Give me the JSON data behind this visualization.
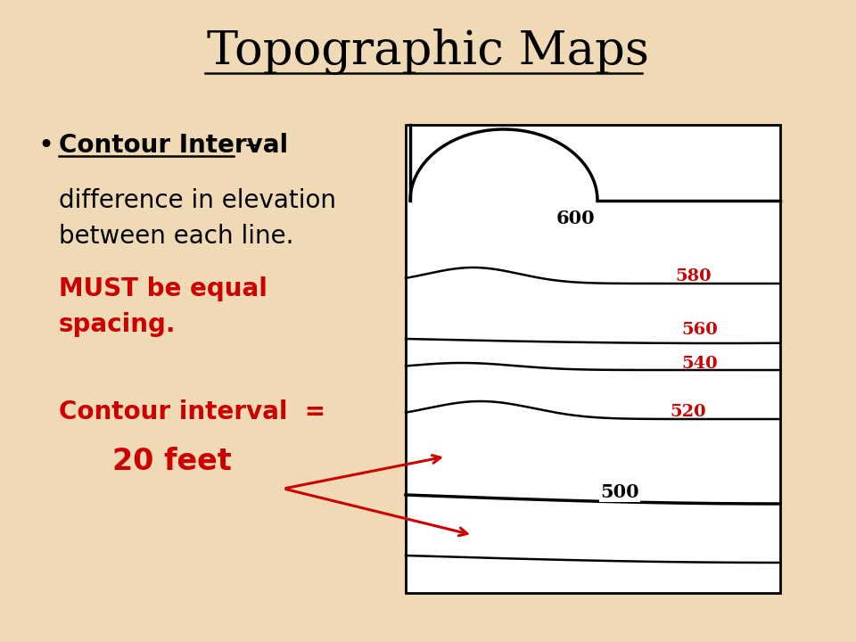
{
  "title": "Topographic Maps",
  "bg_color": "#f0d9b5",
  "title_fontsize": 38,
  "bullet_label": "Contour Interval",
  "bullet_dash": " –",
  "body_text": "difference in elevation\nbetween each line.",
  "red_text": "MUST be equal\nspacing.",
  "contour_label": "Contour interval  =",
  "contour_value": "20 feet",
  "label_color": "#cc0000",
  "text_color": "#000000",
  "map_label_600": "600",
  "map_label_580": "580",
  "map_label_560": "560",
  "map_label_540": "540",
  "map_label_520": "520",
  "map_label_500": "500"
}
